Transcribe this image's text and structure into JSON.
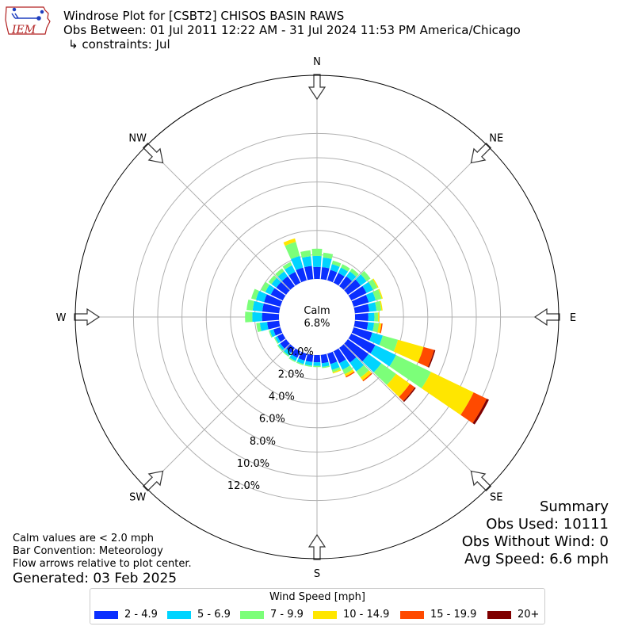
{
  "header": {
    "logo_text": "IEM",
    "title": "Windrose Plot for [CSBT2] CHISOS BASIN RAWS",
    "obs_between": "Obs Between: 01 Jul 2011 12:22 AM - 31 Jul 2024 11:53 PM America/Chicago",
    "constraints": "↳ constraints: Jul"
  },
  "notes": {
    "calm_def": "Calm values are < 2.0 mph",
    "bar_convention": "Bar Convention: Meteorology",
    "flow_arrows": "Flow arrows relative to plot center.",
    "generated": "Generated: 03 Feb 2025"
  },
  "summary": {
    "title": "Summary",
    "obs_used": "Obs Used: 10111",
    "obs_without_wind": "Obs Without Wind: 0",
    "avg_speed": "Avg Speed: 6.6 mph"
  },
  "chart_data": {
    "type": "windrose",
    "calm_label": "Calm",
    "calm_value": "6.8%",
    "directions": [
      "N",
      "NE",
      "E",
      "SE",
      "S",
      "SW",
      "W",
      "NW"
    ],
    "radial_ticks": [
      "0.0%",
      "2.0%",
      "4.0%",
      "6.0%",
      "8.0%",
      "10.0%",
      "12.0%"
    ],
    "rlim_percent": [
      0,
      16.5
    ],
    "calm_percent": 6.8,
    "legend_title": "Wind Speed [mph]",
    "speed_bins": [
      {
        "label": "2 - 4.9",
        "color": "#0a2fff"
      },
      {
        "label": "5 - 6.9",
        "color": "#00d4ff"
      },
      {
        "label": "7 - 9.9",
        "color": "#7cff79"
      },
      {
        "label": "10 - 14.9",
        "color": "#ffe600"
      },
      {
        "label": "15 - 19.9",
        "color": "#ff4a00"
      },
      {
        "label": "20+",
        "color": "#7f0000"
      }
    ],
    "sector_directions_deg": [
      0,
      10,
      20,
      30,
      40,
      50,
      60,
      70,
      80,
      90,
      100,
      110,
      120,
      130,
      140,
      150,
      160,
      170,
      180,
      190,
      200,
      210,
      220,
      230,
      240,
      250,
      260,
      270,
      280,
      290,
      300,
      310,
      320,
      330,
      340,
      350
    ],
    "sectors": [
      [
        1.0,
        0.9,
        0.6,
        0.0,
        0.0,
        0.0
      ],
      [
        1.0,
        0.8,
        0.4,
        0.0,
        0.0,
        0.0
      ],
      [
        0.9,
        0.5,
        0.3,
        0.0,
        0.0,
        0.0
      ],
      [
        0.9,
        0.5,
        0.3,
        0.0,
        0.0,
        0.0
      ],
      [
        1.0,
        0.5,
        0.3,
        0.0,
        0.0,
        0.0
      ],
      [
        1.3,
        0.6,
        0.4,
        0.0,
        0.0,
        0.0
      ],
      [
        1.4,
        0.6,
        0.4,
        0.1,
        0.0,
        0.0
      ],
      [
        1.3,
        0.6,
        0.5,
        0.1,
        0.0,
        0.0
      ],
      [
        1.2,
        0.6,
        0.4,
        0.1,
        0.0,
        0.0
      ],
      [
        1.1,
        0.5,
        0.3,
        0.1,
        0.0,
        0.0
      ],
      [
        1.1,
        0.5,
        0.4,
        0.2,
        0.1,
        0.0
      ],
      [
        1.6,
        0.9,
        1.3,
        2.2,
        0.9,
        0.1
      ],
      [
        2.2,
        1.9,
        3.2,
        3.9,
        1.2,
        0.2
      ],
      [
        2.1,
        1.3,
        1.5,
        1.4,
        0.5,
        0.1
      ],
      [
        1.5,
        0.9,
        0.6,
        0.3,
        0.1,
        0.0
      ],
      [
        1.1,
        0.6,
        0.4,
        0.2,
        0.1,
        0.0
      ],
      [
        0.9,
        0.5,
        0.2,
        0.1,
        0.0,
        0.0
      ],
      [
        0.7,
        0.3,
        0.1,
        0.0,
        0.0,
        0.0
      ],
      [
        0.6,
        0.3,
        0.1,
        0.0,
        0.0,
        0.0
      ],
      [
        0.6,
        0.3,
        0.1,
        0.0,
        0.0,
        0.0
      ],
      [
        0.6,
        0.3,
        0.1,
        0.0,
        0.0,
        0.0
      ],
      [
        0.6,
        0.3,
        0.1,
        0.0,
        0.0,
        0.0
      ],
      [
        0.5,
        0.3,
        0.1,
        0.0,
        0.0,
        0.0
      ],
      [
        0.6,
        0.2,
        0.1,
        0.0,
        0.0,
        0.0
      ],
      [
        0.5,
        0.2,
        0.1,
        0.0,
        0.0,
        0.0
      ],
      [
        0.6,
        0.3,
        0.1,
        0.0,
        0.0,
        0.0
      ],
      [
        1.0,
        0.6,
        0.3,
        0.0,
        0.0,
        0.0
      ],
      [
        1.4,
        0.8,
        0.6,
        0.0,
        0.0,
        0.0
      ],
      [
        1.4,
        0.8,
        0.5,
        0.0,
        0.0,
        0.0
      ],
      [
        1.4,
        0.7,
        0.4,
        0.0,
        0.0,
        0.0
      ],
      [
        1.1,
        0.5,
        0.4,
        0.0,
        0.0,
        0.0
      ],
      [
        1.0,
        0.5,
        0.3,
        0.0,
        0.0,
        0.0
      ],
      [
        1.0,
        0.5,
        0.3,
        0.0,
        0.0,
        0.0
      ],
      [
        1.0,
        0.6,
        0.3,
        0.0,
        0.0,
        0.0
      ],
      [
        1.1,
        1.0,
        1.2,
        0.3,
        0.0,
        0.0
      ],
      [
        1.1,
        0.8,
        0.5,
        0.0,
        0.0,
        0.0
      ]
    ]
  }
}
